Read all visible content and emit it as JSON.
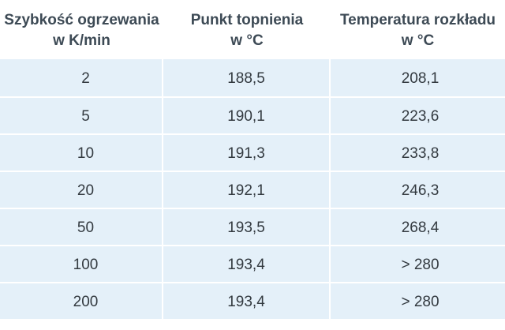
{
  "table": {
    "headers": [
      [
        "Szybkość ogrzewania",
        "w K/min"
      ],
      [
        "Punkt topnienia",
        "w °C"
      ],
      [
        "Temperatura rozkładu",
        "w °C"
      ]
    ],
    "rows": [
      [
        "2",
        "188,5",
        "208,1"
      ],
      [
        "5",
        "190,1",
        "223,6"
      ],
      [
        "10",
        "191,3",
        "233,8"
      ],
      [
        "20",
        "192,1",
        "246,3"
      ],
      [
        "50",
        "193,5",
        "268,4"
      ],
      [
        "100",
        "193,4",
        "> 280"
      ],
      [
        "200",
        "193,4",
        "> 280"
      ]
    ]
  }
}
